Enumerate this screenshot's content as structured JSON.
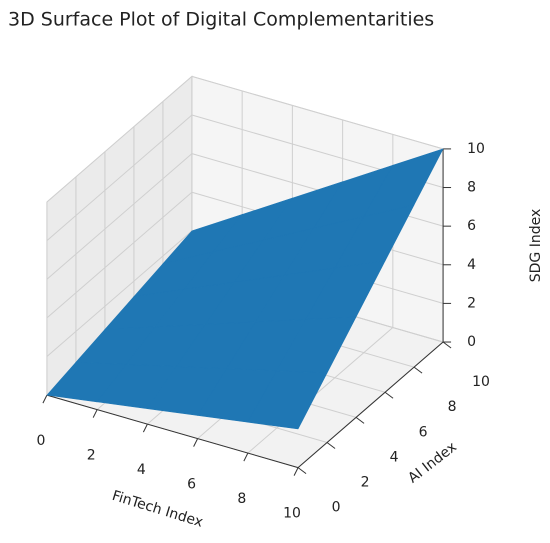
{
  "chart_data": {
    "type": "surface3d",
    "title": "3D Surface Plot of Digital Complementarities",
    "x_label": "FinTech Index",
    "y_label": "AI Index",
    "z_label": "SDG Index",
    "x": [
      0,
      2,
      4,
      6,
      8,
      10
    ],
    "y": [
      0,
      2,
      4,
      6,
      8,
      10
    ],
    "z": [
      [
        0,
        0.4,
        0.8,
        1.2,
        1.6,
        2.0
      ],
      [
        0.4,
        1.04,
        1.68,
        2.32,
        2.96,
        3.6
      ],
      [
        0.8,
        1.68,
        2.56,
        3.44,
        4.32,
        5.2
      ],
      [
        1.2,
        2.32,
        3.44,
        4.56,
        5.68,
        6.8
      ],
      [
        1.6,
        2.96,
        4.32,
        5.68,
        7.04,
        8.4
      ],
      [
        2.0,
        3.6,
        5.2,
        6.8,
        8.4,
        10
      ]
    ],
    "xlim": [
      0,
      10
    ],
    "ylim": [
      0,
      10
    ],
    "zlim": [
      0,
      10
    ],
    "xticks": [
      0,
      2,
      4,
      6,
      8,
      10
    ],
    "yticks": [
      0,
      2,
      4,
      6,
      8,
      10
    ],
    "zticks": [
      0,
      2,
      4,
      6,
      8,
      10
    ],
    "color": "#1f77b4",
    "grid": true
  }
}
